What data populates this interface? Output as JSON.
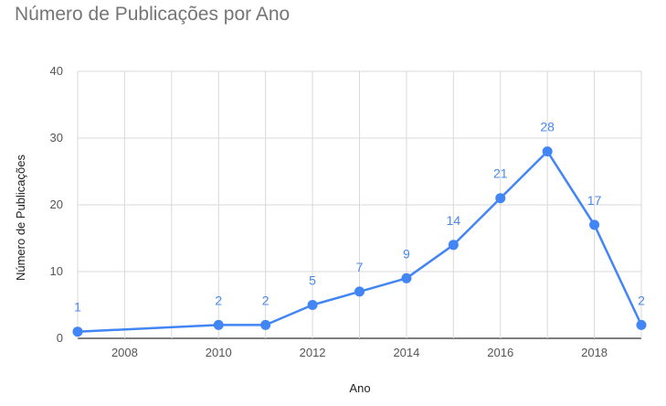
{
  "chart_data": {
    "type": "line",
    "title": "Número de Publicações por Ano",
    "xlabel": "Ano",
    "ylabel": "Número de Publicações",
    "x": [
      2007,
      2010,
      2011,
      2012,
      2013,
      2014,
      2015,
      2016,
      2017,
      2018,
      2019
    ],
    "series": [
      {
        "values": [
          1,
          2,
          2,
          5,
          7,
          9,
          14,
          21,
          28,
          17,
          2
        ]
      }
    ],
    "xlim": [
      2007,
      2019
    ],
    "ylim": [
      0,
      40
    ],
    "xticks": [
      2008,
      2010,
      2012,
      2014,
      2016,
      2018
    ],
    "yticks": [
      0,
      10,
      20,
      30,
      40
    ],
    "grid": true,
    "data_labels": true,
    "color": "#4285f4",
    "label_color": "#4a88e8"
  }
}
